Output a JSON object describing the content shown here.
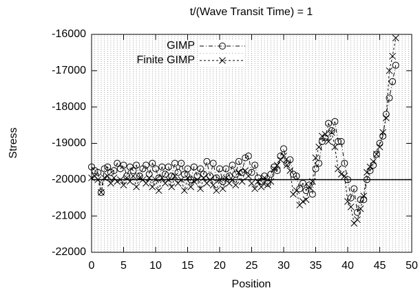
{
  "chart_data": {
    "type": "line",
    "title": "t/(Wave Transit Time) = 1",
    "x_label": "Position",
    "y_label": "Stress",
    "xlim": [
      0,
      50
    ],
    "xticks": [
      0,
      5,
      10,
      15,
      20,
      25,
      30,
      35,
      40,
      45,
      50
    ],
    "ylim": [
      -22000,
      -16000
    ],
    "yticks": [
      -22000,
      -21000,
      -20000,
      -19000,
      -18000,
      -17000,
      -16000
    ],
    "x_grid_step": 0.5,
    "hline": -20000,
    "legend": "top-left",
    "x": [
      0,
      0.5,
      1,
      1.5,
      2,
      2.5,
      3,
      3.5,
      4,
      4.5,
      5,
      5.5,
      6,
      6.5,
      7,
      7.5,
      8,
      8.5,
      9,
      9.5,
      10,
      10.5,
      11,
      11.5,
      12,
      12.5,
      13,
      13.5,
      14,
      14.5,
      15,
      15.5,
      16,
      16.5,
      17,
      17.5,
      18,
      18.5,
      19,
      19.5,
      20,
      20.5,
      21,
      21.5,
      22,
      22.5,
      23,
      23.5,
      24,
      24.5,
      25,
      25.5,
      26,
      26.5,
      27,
      27.5,
      28,
      28.5,
      29,
      29.5,
      30,
      30.5,
      31,
      31.5,
      32,
      32.5,
      33,
      33.5,
      34,
      34.5,
      35,
      35.5,
      36,
      36.5,
      37,
      37.5,
      38,
      38.5,
      39,
      39.5,
      40,
      40.5,
      41,
      41.5,
      42,
      42.5,
      43,
      43.5,
      44,
      44.5,
      45,
      45.5,
      46,
      46.5,
      47,
      47.5
    ],
    "series": [
      {
        "name": "GIMP",
        "color": "#000000",
        "marker": "circle",
        "dash": "6 3 1 3",
        "values": [
          -19650,
          -19750,
          -19800,
          -20350,
          -19700,
          -19650,
          -19800,
          -19750,
          -19550,
          -19700,
          -19600,
          -19900,
          -19650,
          -19750,
          -19600,
          -19900,
          -19700,
          -19600,
          -19850,
          -19550,
          -19700,
          -19950,
          -19650,
          -19850,
          -19650,
          -19900,
          -19550,
          -19800,
          -19550,
          -19850,
          -19700,
          -20000,
          -19650,
          -19900,
          -19700,
          -19850,
          -19500,
          -19900,
          -19550,
          -19950,
          -19700,
          -20050,
          -19700,
          -19900,
          -19600,
          -19850,
          -19500,
          -19800,
          -19400,
          -19350,
          -19800,
          -19600,
          -19950,
          -20050,
          -19900,
          -20100,
          -19850,
          -19650,
          -19750,
          -19350,
          -19150,
          -19550,
          -19450,
          -19850,
          -19900,
          -20250,
          -20100,
          -20300,
          -20150,
          -20400,
          -19700,
          -19550,
          -18950,
          -18850,
          -18450,
          -18650,
          -18400,
          -18950,
          -18950,
          -19550,
          -20000,
          -20500,
          -20250,
          -20900,
          -20550,
          -20550,
          -20000,
          -19750,
          -19600,
          -19300,
          -19000,
          -18800,
          -18200,
          -17750,
          -17300,
          -16850
        ]
      },
      {
        "name": "Finite GIMP",
        "color": "#000000",
        "marker": "cross",
        "dash": "3 3",
        "values": [
          -19950,
          -19900,
          -20000,
          -20350,
          -19950,
          -19900,
          -20100,
          -19950,
          -20050,
          -20000,
          -20150,
          -19950,
          -20050,
          -19900,
          -20200,
          -19950,
          -20000,
          -20100,
          -19950,
          -20200,
          -20000,
          -20300,
          -19950,
          -20100,
          -20000,
          -20200,
          -19900,
          -20100,
          -20000,
          -20300,
          -19950,
          -20200,
          -20050,
          -20000,
          -20250,
          -19950,
          -20100,
          -20000,
          -20150,
          -20300,
          -20000,
          -20250,
          -19950,
          -20100,
          -20000,
          -20150,
          -19800,
          -20050,
          -19750,
          -19900,
          -20100,
          -20250,
          -20050,
          -20200,
          -19950,
          -20150,
          -20050,
          -19700,
          -19600,
          -19450,
          -19350,
          -19600,
          -19750,
          -20400,
          -20300,
          -20700,
          -20600,
          -20550,
          -20200,
          -20050,
          -19400,
          -19100,
          -18800,
          -18750,
          -18950,
          -18700,
          -19100,
          -19700,
          -19850,
          -19900,
          -20600,
          -20750,
          -21200,
          -21100,
          -20800,
          -20450,
          -19800,
          -19650,
          -19500,
          -19300,
          -19100,
          -18700,
          -18300,
          -17000,
          -16600,
          -16100
        ]
      }
    ]
  }
}
